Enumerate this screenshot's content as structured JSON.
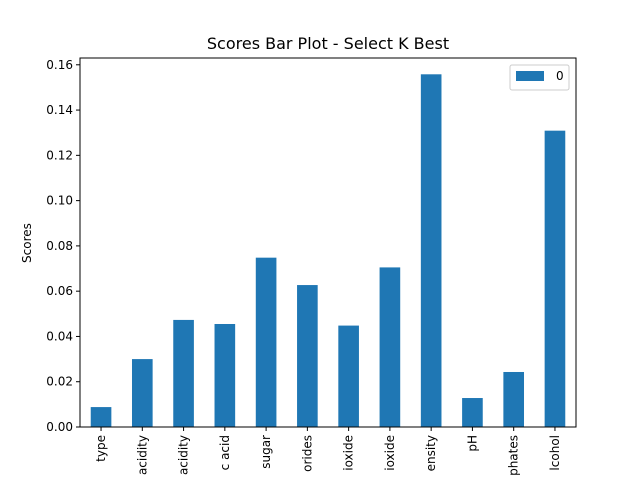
{
  "chart_data": {
    "type": "bar",
    "title": "Scores Bar Plot - Select K Best",
    "xlabel": "",
    "ylabel": "Scores",
    "ylim": [
      0,
      0.163
    ],
    "yticks": [
      0.0,
      0.02,
      0.04,
      0.06,
      0.08,
      0.1,
      0.12,
      0.14,
      0.16
    ],
    "ytick_labels": [
      "0.00",
      "0.02",
      "0.04",
      "0.06",
      "0.08",
      "0.10",
      "0.12",
      "0.14",
      "0.16"
    ],
    "categories": [
      "type",
      "acidity",
      "acidity",
      "c acid",
      "sugar",
      "orides",
      "ioxide",
      "ioxide",
      "ensity",
      "pH",
      "phates",
      "lcohol"
    ],
    "series": [
      {
        "name": "0",
        "color": "#1f77b4",
        "values": [
          0.0088,
          0.03,
          0.0473,
          0.0455,
          0.0748,
          0.0627,
          0.0448,
          0.0705,
          0.1558,
          0.0128,
          0.0243,
          0.1309
        ]
      }
    ],
    "grid": false,
    "legend": {
      "position": "top-right",
      "entries": [
        "0"
      ]
    }
  }
}
